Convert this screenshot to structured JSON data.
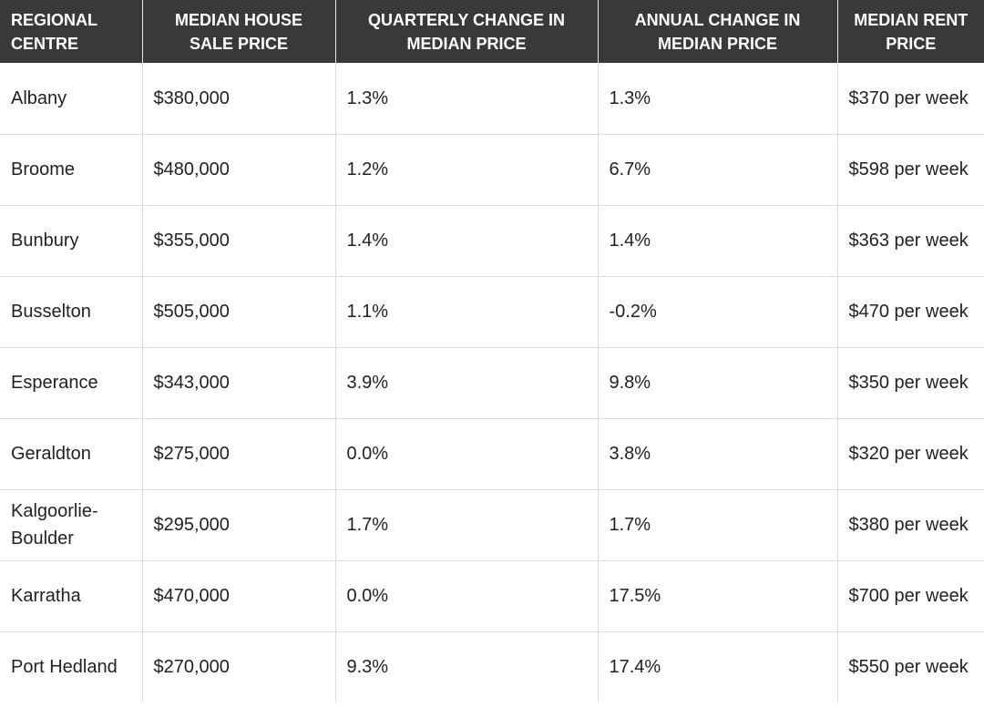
{
  "table": {
    "headers": [
      "REGIONAL CENTRE",
      "MEDIAN HOUSE SALE PRICE",
      "QUARTERLY CHANGE IN MEDIAN PRICE",
      "ANNUAL CHANGE IN MEDIAN PRICE",
      "MEDIAN RENT PRICE"
    ],
    "rows": [
      [
        "Albany",
        "$380,000",
        "1.3%",
        "1.3%",
        "$370 per week"
      ],
      [
        "Broome",
        "$480,000",
        "1.2%",
        "6.7%",
        "$598 per week"
      ],
      [
        "Bunbury",
        "$355,000",
        "1.4%",
        "1.4%",
        "$363 per week"
      ],
      [
        "Busselton",
        "$505,000",
        "1.1%",
        "-0.2%",
        "$470 per week"
      ],
      [
        "Esperance",
        "$343,000",
        "3.9%",
        "9.8%",
        "$350 per week"
      ],
      [
        "Geraldton",
        "$275,000",
        "0.0%",
        "3.8%",
        "$320 per week"
      ],
      [
        "Kalgoorlie-Boulder",
        "$295,000",
        "1.7%",
        "1.7%",
        "$380 per week"
      ],
      [
        "Karratha",
        "$470,000",
        "0.0%",
        "17.5%",
        "$700 per week"
      ],
      [
        "Port Hedland",
        "$270,000",
        "9.3%",
        "17.4%",
        "$550 per week"
      ]
    ]
  }
}
